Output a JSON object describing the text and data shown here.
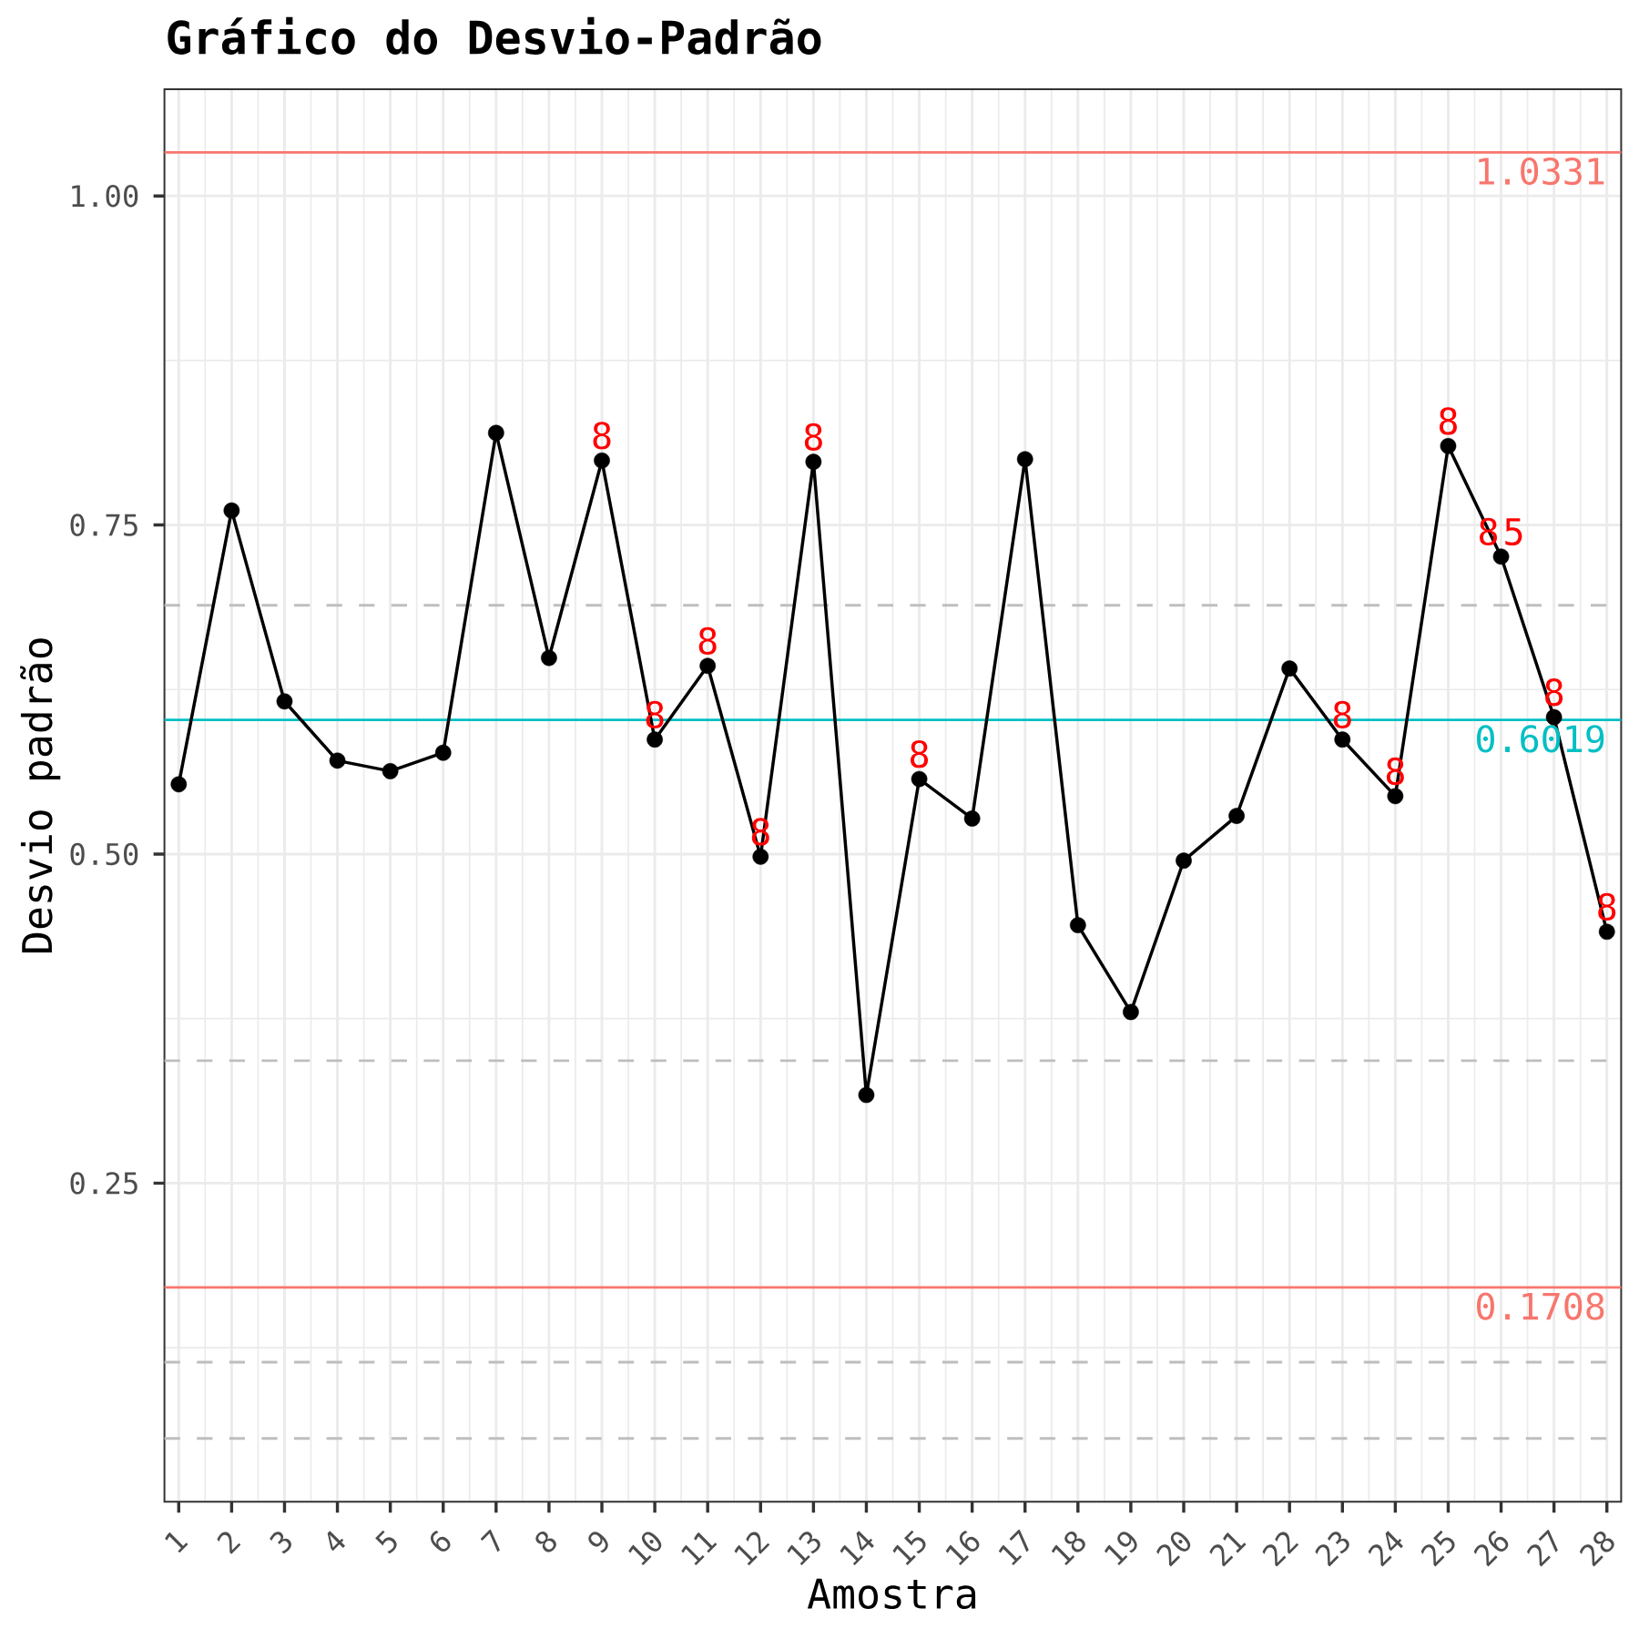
{
  "chart_data": {
    "type": "line",
    "title": "Gráfico do Desvio-Padrão",
    "xlabel": "Amostra",
    "ylabel": "Desvio padrão",
    "x": [
      1,
      2,
      3,
      4,
      5,
      6,
      7,
      8,
      9,
      10,
      11,
      12,
      13,
      14,
      15,
      16,
      17,
      18,
      19,
      20,
      21,
      22,
      23,
      24,
      25,
      26,
      27,
      28
    ],
    "series": [
      {
        "color": "#000000",
        "values": [
          0.553,
          0.761,
          0.616,
          0.571,
          0.563,
          0.577,
          0.82,
          0.649,
          0.799,
          0.587,
          0.643,
          0.498,
          0.798,
          0.317,
          0.557,
          0.527,
          0.8,
          0.446,
          0.38,
          0.495,
          0.529,
          0.641,
          0.587,
          0.544,
          0.81,
          0.726,
          0.604,
          0.441
        ]
      }
    ],
    "xlim": [
      0.73,
      28.27
    ],
    "ylim": [
      0.008,
      1.081
    ],
    "xticks": [
      1,
      2,
      3,
      4,
      5,
      6,
      7,
      8,
      9,
      10,
      11,
      12,
      13,
      14,
      15,
      16,
      17,
      18,
      19,
      20,
      21,
      22,
      23,
      24,
      25,
      26,
      27,
      28
    ],
    "yticks": [
      0.25,
      {
        "value": 0.5,
        "label": "0.50"
      },
      0.75,
      {
        "value": 1,
        "label": "1.00"
      }
    ],
    "grid": true,
    "marker": "circle",
    "line_style": "solid",
    "ref_lines": [
      {
        "axis": "y",
        "value": 1.0331,
        "label": "1.0331",
        "color": "#f8766d"
      },
      {
        "axis": "y",
        "value": 0.6019,
        "label": "0.6019",
        "color": "#00bfc4"
      },
      {
        "axis": "y",
        "value": 0.1708,
        "label": "0.1708",
        "color": "#f8766d"
      },
      {
        "axis": "y",
        "value": 0.689,
        "color": "#bebebe",
        "line_style": "dashed"
      },
      {
        "axis": "y",
        "value": 0.343,
        "color": "#bebebe",
        "line_style": "dashed"
      },
      {
        "axis": "y",
        "value": 0.114,
        "color": "#bebebe",
        "line_style": "dashed"
      },
      {
        "axis": "y",
        "value": 0.056,
        "color": "#bebebe",
        "line_style": "dashed"
      }
    ],
    "annotations": [
      {
        "text": "8",
        "x": 9,
        "y": 0.799
      },
      {
        "text": "8",
        "x": 10,
        "y": 0.587
      },
      {
        "text": "8",
        "x": 11,
        "y": 0.643
      },
      {
        "text": "8",
        "x": 12,
        "y": 0.498
      },
      {
        "text": "8",
        "x": 13,
        "y": 0.798
      },
      {
        "text": "8",
        "x": 15,
        "y": 0.557
      },
      {
        "text": "8",
        "x": 23,
        "y": 0.587
      },
      {
        "text": "8",
        "x": 24,
        "y": 0.544
      },
      {
        "text": "8",
        "x": 25,
        "y": 0.81
      },
      {
        "text": "8",
        "x": 26,
        "y": 0.726
      },
      {
        "text": "5",
        "x": 26,
        "y": 0.726
      },
      {
        "text": "8",
        "x": 27,
        "y": 0.604
      },
      {
        "text": "8",
        "x": 28,
        "y": 0.441
      }
    ]
  }
}
